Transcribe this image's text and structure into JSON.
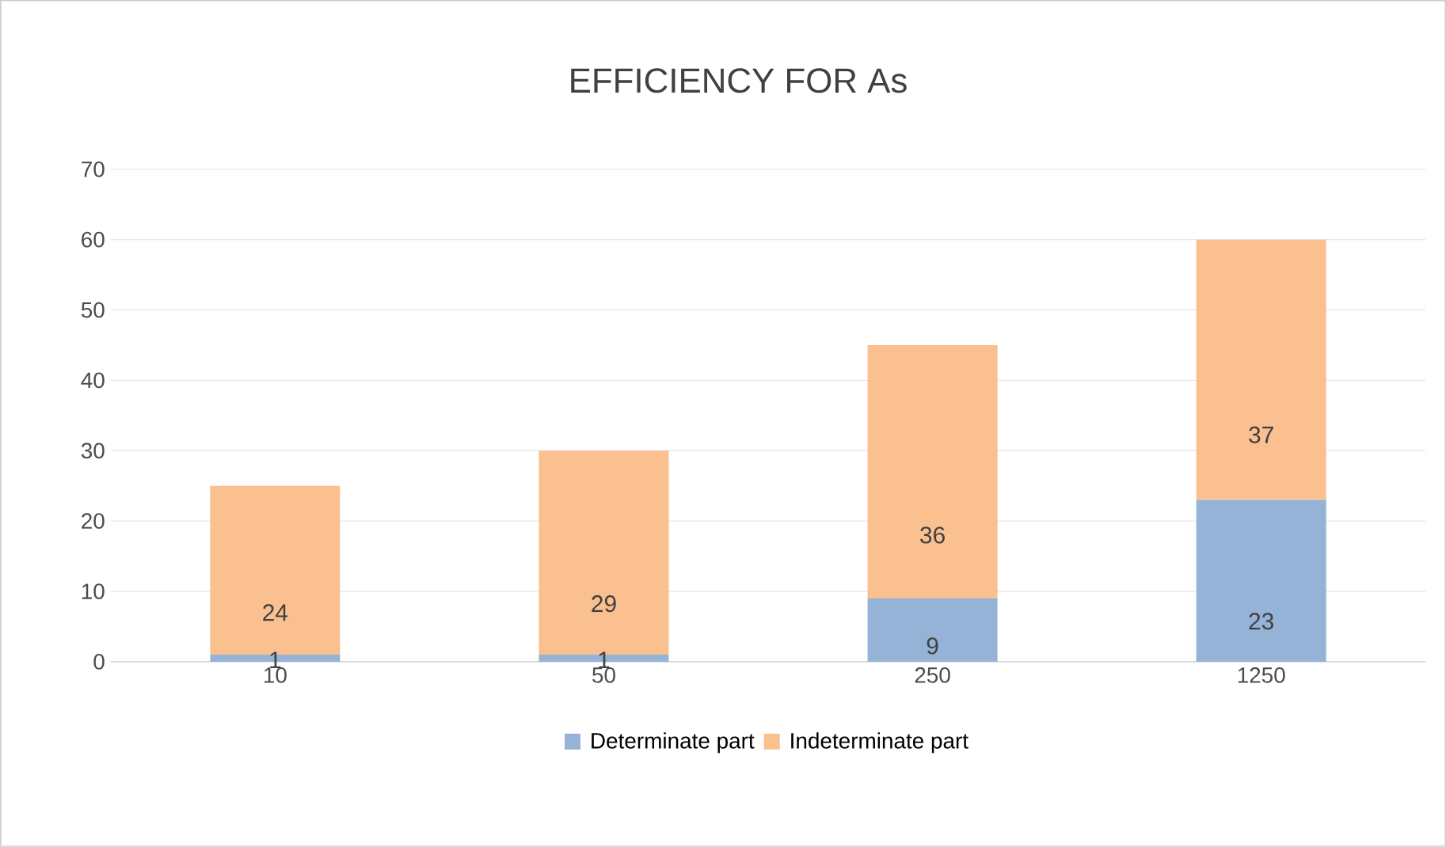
{
  "chart_data": {
    "type": "bar",
    "title": "EFFICIENCY FOR As",
    "categories": [
      "10",
      "50",
      "250",
      "1250"
    ],
    "series": [
      {
        "name": "Determinate part",
        "color": "#95b3d7",
        "values": [
          1,
          1,
          9,
          23
        ]
      },
      {
        "name": "Indeterminate part",
        "color": "#fac090",
        "values": [
          24,
          29,
          36,
          37
        ]
      }
    ],
    "stacked": true,
    "ylim": [
      0,
      70
    ],
    "yticks": [
      0,
      10,
      20,
      30,
      40,
      50,
      60,
      70
    ],
    "grid": "y",
    "legend": "bottom",
    "data_labels": true
  }
}
